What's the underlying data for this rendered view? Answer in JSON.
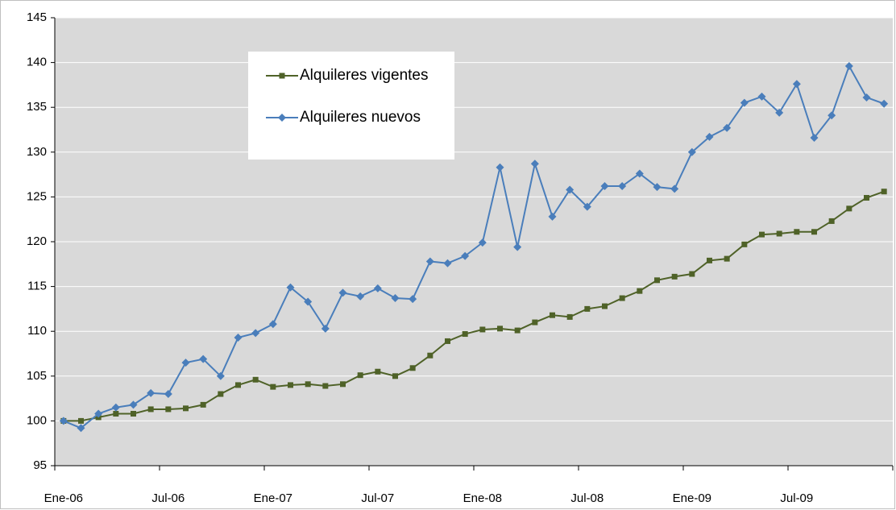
{
  "chart_data": {
    "type": "line",
    "categories": [
      "Ene-06",
      null,
      null,
      null,
      null,
      null,
      "Jul-06",
      null,
      null,
      null,
      null,
      null,
      "Ene-07",
      null,
      null,
      null,
      null,
      null,
      "Jul-07",
      null,
      null,
      null,
      null,
      null,
      "Ene-08",
      null,
      null,
      null,
      null,
      null,
      "Jul-08",
      null,
      null,
      null,
      null,
      null,
      "Ene-09",
      null,
      null,
      null,
      null,
      null,
      "Jul-09",
      null,
      null,
      null,
      null,
      null
    ],
    "series": [
      {
        "name": "Alquileres vigentes",
        "color": "#4f6228",
        "marker": "square",
        "values": [
          100.0,
          100.0,
          100.4,
          100.8,
          100.8,
          101.3,
          101.3,
          101.4,
          101.8,
          103.0,
          104.0,
          104.6,
          103.8,
          104.0,
          104.1,
          103.9,
          104.1,
          105.1,
          105.5,
          105.0,
          105.9,
          107.3,
          108.9,
          109.7,
          110.2,
          110.3,
          110.1,
          111.0,
          111.8,
          111.6,
          112.5,
          112.8,
          113.7,
          114.5,
          115.7,
          116.1,
          116.4,
          117.9,
          118.1,
          119.7,
          120.8,
          120.9,
          121.1,
          121.1,
          122.3,
          123.7,
          124.9,
          125.6
        ]
      },
      {
        "name": "Alquileres nuevos",
        "color": "#4a7ebb",
        "marker": "diamond",
        "values": [
          100.0,
          99.2,
          100.8,
          101.5,
          101.8,
          103.1,
          103.0,
          106.5,
          106.9,
          105.0,
          109.3,
          109.8,
          110.8,
          114.9,
          113.3,
          110.3,
          114.3,
          113.9,
          114.8,
          113.7,
          113.6,
          117.8,
          117.6,
          118.4,
          119.9,
          128.3,
          119.4,
          128.7,
          122.8,
          125.8,
          123.9,
          126.2,
          126.2,
          127.6,
          126.1,
          125.9,
          130.0,
          131.7,
          132.7,
          135.5,
          136.2,
          134.4,
          137.6,
          131.6,
          134.1,
          139.6,
          136.1,
          135.4
        ]
      }
    ],
    "ylim": [
      95,
      145
    ],
    "yticks": [
      95,
      100,
      105,
      110,
      115,
      120,
      125,
      130,
      135,
      140,
      145
    ],
    "grid": true
  }
}
